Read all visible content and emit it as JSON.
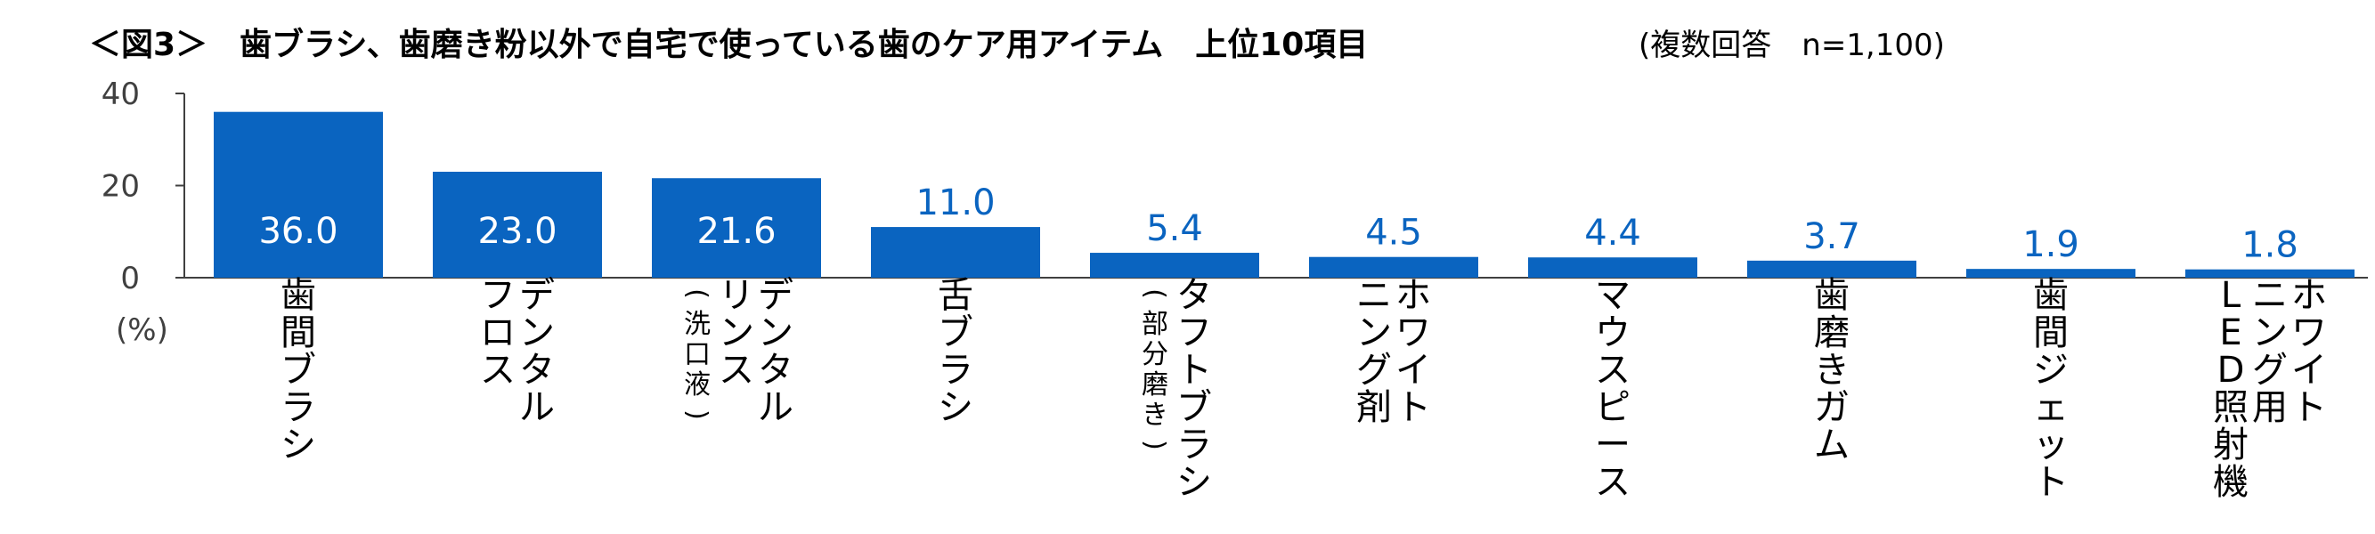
{
  "chart_data": {
    "type": "bar",
    "title": "＜図3＞　歯ブラシ、歯磨き粉以外で自宅で使っている歯のケア用アイテム　上位10項目",
    "subtitle": "(複数回答　n=1,100)",
    "ylabel": "(%)",
    "ylim": [
      0,
      40
    ],
    "yticks": [
      "0",
      "20",
      "40"
    ],
    "grid": false,
    "bar_color": "#0a64c0",
    "categories": [
      {
        "lines": [
          "歯",
          "間",
          "ブ",
          "ラ",
          "シ"
        ],
        "sub": []
      },
      {
        "lines": [
          "デ",
          "ン",
          "タ",
          "ル"
        ],
        "lines2": [
          "フ",
          "ロ",
          "ス"
        ],
        "sub": []
      },
      {
        "lines": [
          "デ",
          "ン",
          "タ",
          "ル"
        ],
        "lines2": [
          "リ",
          "ン",
          "ス"
        ],
        "sub": [
          "(",
          "洗",
          "口",
          "液",
          ")"
        ]
      },
      {
        "lines": [
          "舌",
          "ブ",
          "ラ",
          "シ"
        ],
        "sub": []
      },
      {
        "lines": [
          "タ",
          "フ",
          "ト",
          "ブ",
          "ラ",
          "シ"
        ],
        "sub": [
          "(",
          "部",
          "分",
          "磨",
          "き",
          ")"
        ]
      },
      {
        "lines": [
          "ホ",
          "ワ",
          "イ",
          "ト"
        ],
        "lines2": [
          "ニ",
          "ン",
          "グ",
          "剤"
        ],
        "sub": []
      },
      {
        "lines": [
          "マ",
          "ウ",
          "ス",
          "ピ",
          "ー",
          "ス"
        ],
        "sub": []
      },
      {
        "lines": [
          "歯",
          "磨",
          "き",
          "ガ",
          "ム"
        ],
        "sub": []
      },
      {
        "lines": [
          "歯",
          "間",
          "ジ",
          "ェ",
          "ッ",
          "ト"
        ],
        "sub": []
      },
      {
        "lines": [
          "ホ",
          "ワ",
          "イ",
          "ト"
        ],
        "lines2": [
          "ニ",
          "ン",
          "グ",
          "用"
        ],
        "lines3": [
          "L",
          "E",
          "D",
          "照",
          "射",
          "機"
        ],
        "sub": []
      }
    ],
    "values": [
      36.0,
      23.0,
      21.6,
      11.0,
      5.4,
      4.5,
      4.4,
      3.7,
      1.9,
      1.8
    ],
    "value_labels": [
      "36.0",
      "23.0",
      "21.6",
      "11.0",
      "5.4",
      "4.5",
      "4.4",
      "3.7",
      "1.9",
      "1.8"
    ]
  }
}
